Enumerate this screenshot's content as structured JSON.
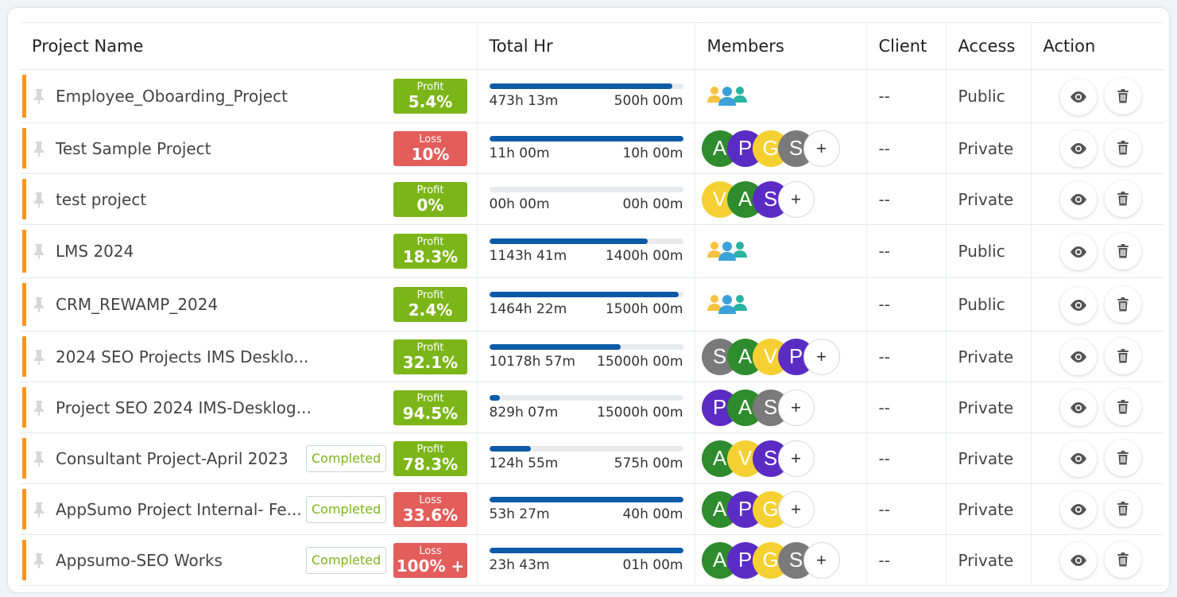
{
  "headers": {
    "project_name": "Project Name",
    "total_hr": "Total Hr",
    "members": "Members",
    "client": "Client",
    "access": "Access",
    "action": "Action"
  },
  "colors": {
    "green": "#2e8b2e",
    "purple": "#5b2cc4",
    "yellow": "#f5d033",
    "gray": "#7a7a7a",
    "profit": "#7cb518",
    "loss": "#e35d5b",
    "bar": "#0d5aa7",
    "accent": "#f7941d"
  },
  "rows": [
    {
      "name": "Employee_Oboarding_Project",
      "completed": "",
      "pl_type": "profit",
      "pl_label": "Profit",
      "pl_value": "5.4%",
      "spent": "473h 13m",
      "budget": "500h 00m",
      "progress": 0.946,
      "members_group": true,
      "members": [],
      "client": "--",
      "access": "Public"
    },
    {
      "name": "Test Sample Project",
      "completed": "",
      "pl_type": "loss",
      "pl_label": "Loss",
      "pl_value": "10%",
      "spent": "11h 00m",
      "budget": "10h 00m",
      "progress": 1.0,
      "members_group": false,
      "members": [
        {
          "letter": "A",
          "color": "green"
        },
        {
          "letter": "P",
          "color": "purple"
        },
        {
          "letter": "G",
          "color": "yellow"
        },
        {
          "letter": "S",
          "color": "gray"
        }
      ],
      "client": "--",
      "access": "Private"
    },
    {
      "name": "test project",
      "completed": "",
      "pl_type": "profit",
      "pl_label": "Profit",
      "pl_value": "0%",
      "spent": "00h 00m",
      "budget": "00h 00m",
      "progress": 0,
      "members_group": false,
      "members": [
        {
          "letter": "V",
          "color": "yellow"
        },
        {
          "letter": "A",
          "color": "green"
        },
        {
          "letter": "S",
          "color": "purple"
        }
      ],
      "client": "--",
      "access": "Private"
    },
    {
      "name": "LMS 2024",
      "completed": "",
      "pl_type": "profit",
      "pl_label": "Profit",
      "pl_value": "18.3%",
      "spent": "1143h 41m",
      "budget": "1400h 00m",
      "progress": 0.817,
      "members_group": true,
      "members": [],
      "client": "--",
      "access": "Public"
    },
    {
      "name": "CRM_REWAMP_2024",
      "completed": "",
      "pl_type": "profit",
      "pl_label": "Profit",
      "pl_value": "2.4%",
      "spent": "1464h 22m",
      "budget": "1500h 00m",
      "progress": 0.976,
      "members_group": true,
      "members": [],
      "client": "--",
      "access": "Public"
    },
    {
      "name": "2024 SEO Projects IMS Desklo...",
      "completed": "",
      "pl_type": "profit",
      "pl_label": "Profit",
      "pl_value": "32.1%",
      "spent": "10178h 57m",
      "budget": "15000h 00m",
      "progress": 0.679,
      "members_group": false,
      "members": [
        {
          "letter": "S",
          "color": "gray"
        },
        {
          "letter": "A",
          "color": "green"
        },
        {
          "letter": "V",
          "color": "yellow"
        },
        {
          "letter": "P",
          "color": "purple"
        }
      ],
      "client": "--",
      "access": "Private"
    },
    {
      "name": "Project SEO 2024 IMS-Desklog...",
      "completed": "",
      "pl_type": "profit",
      "pl_label": "Profit",
      "pl_value": "94.5%",
      "spent": "829h 07m",
      "budget": "15000h 00m",
      "progress": 0.055,
      "members_group": false,
      "members": [
        {
          "letter": "P",
          "color": "purple"
        },
        {
          "letter": "A",
          "color": "green"
        },
        {
          "letter": "S",
          "color": "gray"
        }
      ],
      "client": "--",
      "access": "Private"
    },
    {
      "name": "Consultant Project-April 2023",
      "completed": "Completed",
      "pl_type": "profit",
      "pl_label": "Profit",
      "pl_value": "78.3%",
      "spent": "124h 55m",
      "budget": "575h 00m",
      "progress": 0.217,
      "members_group": false,
      "members": [
        {
          "letter": "A",
          "color": "green"
        },
        {
          "letter": "V",
          "color": "yellow"
        },
        {
          "letter": "S",
          "color": "purple"
        }
      ],
      "client": "--",
      "access": "Private"
    },
    {
      "name": "AppSumo Project Internal- Fe...",
      "completed": "Completed",
      "pl_type": "loss",
      "pl_label": "Loss",
      "pl_value": "33.6%",
      "spent": "53h 27m",
      "budget": "40h 00m",
      "progress": 1.0,
      "members_group": false,
      "members": [
        {
          "letter": "A",
          "color": "green"
        },
        {
          "letter": "P",
          "color": "purple"
        },
        {
          "letter": "G",
          "color": "yellow"
        }
      ],
      "client": "--",
      "access": "Private"
    },
    {
      "name": "Appsumo-SEO Works",
      "completed": "Completed",
      "pl_type": "loss",
      "pl_label": "Loss",
      "pl_value": "100% +",
      "spent": "23h 43m",
      "budget": "01h 00m",
      "progress": 1.0,
      "members_group": false,
      "members": [
        {
          "letter": "A",
          "color": "green"
        },
        {
          "letter": "P",
          "color": "purple"
        },
        {
          "letter": "G",
          "color": "yellow"
        },
        {
          "letter": "S",
          "color": "gray"
        }
      ],
      "client": "--",
      "access": "Private"
    }
  ],
  "icons": {
    "pin": "pin-icon",
    "view": "eye-icon",
    "delete": "trash-icon",
    "group": "team-group-icon",
    "add": "plus-icon"
  },
  "add_member_label": "+"
}
